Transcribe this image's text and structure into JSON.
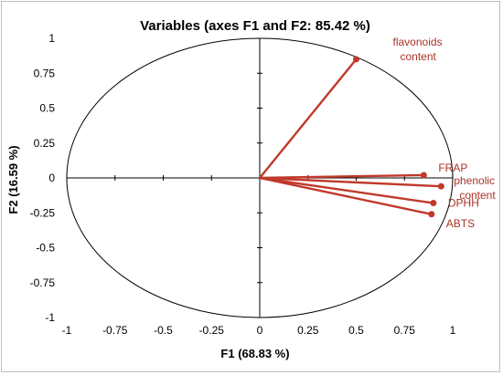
{
  "chart_data": {
    "type": "scatter",
    "title": "Variables (axes F1 and F2: 85.42 %)",
    "xlabel": "F1 (68.83 %)",
    "ylabel": "F2 (16.59 %)",
    "xlim": [
      -1,
      1
    ],
    "ylim": [
      -1,
      1
    ],
    "x_ticks": [
      "-1",
      "-0.75",
      "-0.5",
      "-0.25",
      "0",
      "0.25",
      "0.5",
      "0.75",
      "1"
    ],
    "y_ticks": [
      "1",
      "0.75",
      "0.5",
      "0.25",
      "0",
      "-0.25",
      "-0.5",
      "-0.75",
      "-1"
    ],
    "grid": false,
    "correlation_circle": true,
    "series_color": "#c0392b",
    "label_color": "#a93226",
    "variables": [
      {
        "name": "flavonoids content",
        "lines": [
          "flavonoids",
          "content"
        ],
        "x": 0.5,
        "y": 0.85
      },
      {
        "name": "FRAP",
        "lines": [
          "FRAP"
        ],
        "x": 0.85,
        "y": 0.02
      },
      {
        "name": "phenolic content",
        "lines": [
          "phenolic",
          "content"
        ],
        "x": 0.94,
        "y": -0.06
      },
      {
        "name": "DPHH",
        "lines": [
          "DPHH"
        ],
        "x": 0.9,
        "y": -0.18
      },
      {
        "name": "ABTS",
        "lines": [
          "ABTS"
        ],
        "x": 0.89,
        "y": -0.26
      }
    ]
  }
}
